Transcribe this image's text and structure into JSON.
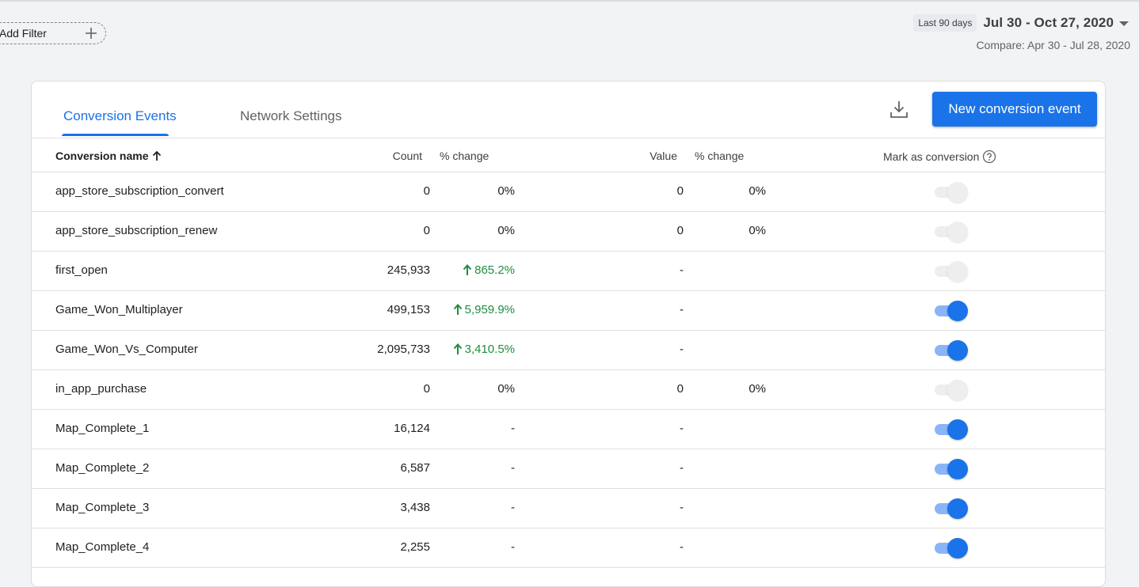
{
  "filter": {
    "add_label": "Add Filter"
  },
  "date": {
    "preset": "Last 90 days",
    "range": "Jul 30 - Oct 27, 2020",
    "compare": "Compare: Apr 30 - Jul 28, 2020"
  },
  "tabs": [
    {
      "label": "Conversion Events",
      "active": true
    },
    {
      "label": "Network Settings",
      "active": false
    }
  ],
  "toolbar": {
    "new_button_label": "New conversion event",
    "download_icon": "download-icon"
  },
  "table": {
    "headers": {
      "name": "Conversion name",
      "count": "Count",
      "count_change": "% change",
      "value": "Value",
      "value_change": "% change",
      "mark": "Mark as conversion"
    },
    "rows": [
      {
        "name": "app_store_subscription_convert",
        "count": "0",
        "count_change": "0%",
        "count_up": false,
        "value": "0",
        "value_change": "0%",
        "marked": false
      },
      {
        "name": "app_store_subscription_renew",
        "count": "0",
        "count_change": "0%",
        "count_up": false,
        "value": "0",
        "value_change": "0%",
        "marked": false
      },
      {
        "name": "first_open",
        "count": "245,933",
        "count_change": "865.2%",
        "count_up": true,
        "value": "-",
        "value_change": "",
        "marked": false
      },
      {
        "name": "Game_Won_Multiplayer",
        "count": "499,153",
        "count_change": "5,959.9%",
        "count_up": true,
        "value": "-",
        "value_change": "",
        "marked": true
      },
      {
        "name": "Game_Won_Vs_Computer",
        "count": "2,095,733",
        "count_change": "3,410.5%",
        "count_up": true,
        "value": "-",
        "value_change": "",
        "marked": true
      },
      {
        "name": "in_app_purchase",
        "count": "0",
        "count_change": "0%",
        "count_up": false,
        "value": "0",
        "value_change": "0%",
        "marked": false
      },
      {
        "name": "Map_Complete_1",
        "count": "16,124",
        "count_change": "-",
        "count_up": false,
        "value": "-",
        "value_change": "",
        "marked": true
      },
      {
        "name": "Map_Complete_2",
        "count": "6,587",
        "count_change": "-",
        "count_up": false,
        "value": "-",
        "value_change": "",
        "marked": true
      },
      {
        "name": "Map_Complete_3",
        "count": "3,438",
        "count_change": "-",
        "count_up": false,
        "value": "-",
        "value_change": "",
        "marked": true
      },
      {
        "name": "Map_Complete_4",
        "count": "2,255",
        "count_change": "-",
        "count_up": false,
        "value": "-",
        "value_change": "",
        "marked": true
      }
    ]
  },
  "colors": {
    "accent": "#1a73e8",
    "positive": "#1e8e3e",
    "toggle_on_track": "#8ab4f8",
    "toggle_off": "#eeeeee"
  }
}
